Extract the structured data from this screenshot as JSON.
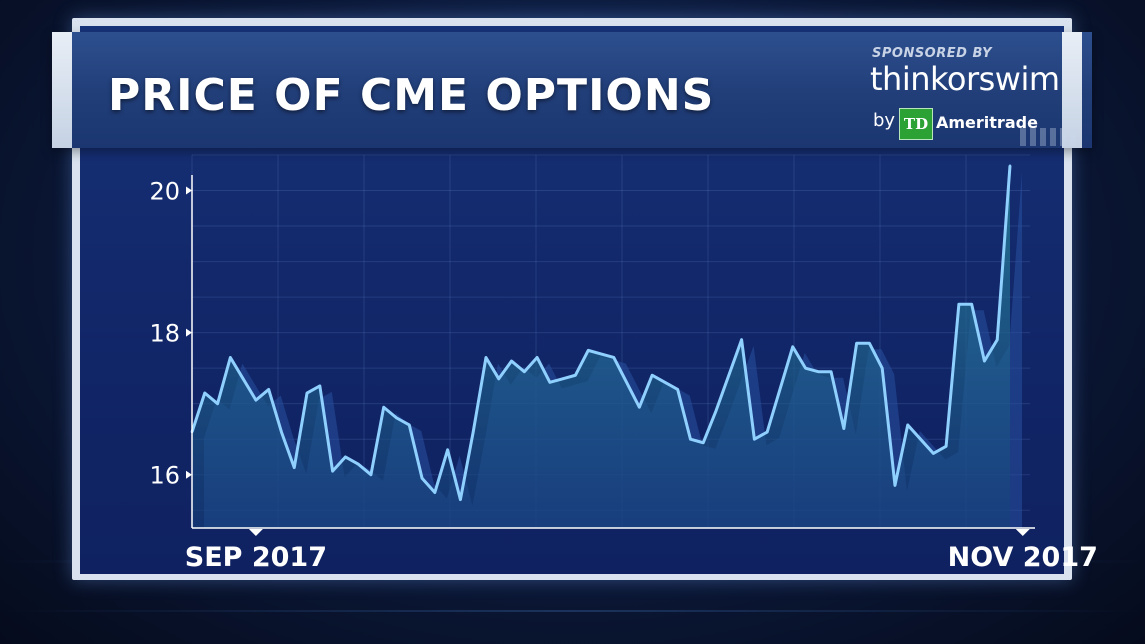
{
  "header": {
    "title": "PRICE OF CME OPTIONS",
    "sponsor_label": "SPONSORED BY",
    "brand": "thinkorswim",
    "by": "by",
    "td_logo": "TD",
    "ameritrade": "Ameritrade"
  },
  "colors": {
    "line": "#8fd0ff",
    "area": "#1f6f88",
    "panel": "#12286a"
  },
  "chart_data": {
    "type": "area",
    "title": "PRICE OF CME OPTIONS",
    "xlabel": "",
    "ylabel": "",
    "ylim": [
      15.25,
      20.5
    ],
    "yticks": [
      16,
      18,
      20
    ],
    "ytick_labels": [
      "16",
      "18",
      "20"
    ],
    "xtick_labels": [
      {
        "label": "SEP 2017",
        "index": 5
      },
      {
        "label": "NOV 2017",
        "index": 65
      }
    ],
    "grid": true,
    "legend": "none",
    "series": [
      {
        "values": [
          16.6,
          17.15,
          17.0,
          17.65,
          17.35,
          17.05,
          17.2,
          16.6,
          16.1,
          17.15,
          17.25,
          16.05,
          16.25,
          16.15,
          16.0,
          16.95,
          16.8,
          16.7,
          15.95,
          15.75,
          16.35,
          15.65,
          16.6,
          17.65,
          17.35,
          17.6,
          17.45,
          17.65,
          17.3,
          17.35,
          17.4,
          17.75,
          17.7,
          17.65,
          17.3,
          16.95,
          17.4,
          17.3,
          17.2,
          16.5,
          16.45,
          16.9,
          17.4,
          17.9,
          16.5,
          16.6,
          17.2,
          17.8,
          17.5,
          17.45,
          17.45,
          16.65,
          17.85,
          17.85,
          17.5,
          15.85,
          16.7,
          16.5,
          16.3,
          16.4,
          18.4,
          18.4,
          17.6,
          17.9,
          20.35
        ]
      }
    ]
  }
}
